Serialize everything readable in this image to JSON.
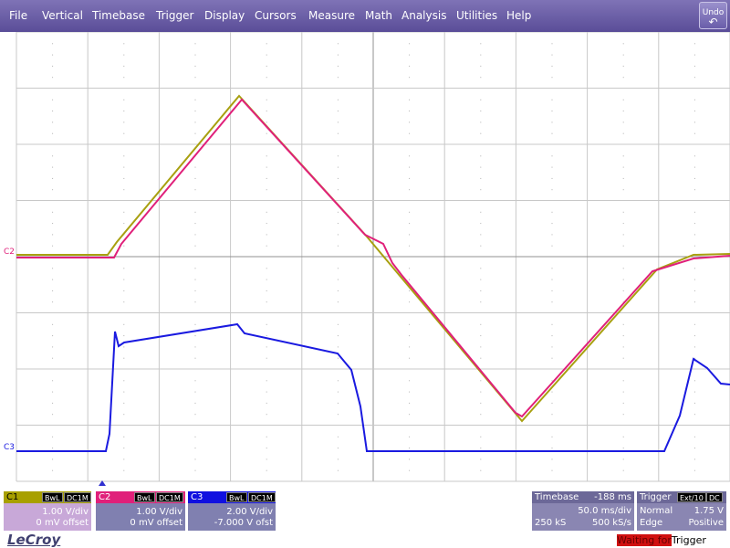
{
  "menu": {
    "items": [
      "File",
      "Vertical",
      "Timebase",
      "Trigger",
      "Display",
      "Cursors",
      "Measure",
      "Math",
      "Analysis",
      "Utilities",
      "Help"
    ],
    "undo_line1": "Undo",
    "undo_line2": "↶"
  },
  "traces": {
    "c1": {
      "color": "#a8a010"
    },
    "c2": {
      "color": "#e0207a"
    },
    "c3": {
      "color": "#1a1ae0"
    }
  },
  "markers": {
    "c2": "C2",
    "c3": "C3"
  },
  "channels": {
    "c1": {
      "name": "C1",
      "bw": "BwL",
      "coupling": "DC1M",
      "scale": "1.00 V/div",
      "offset": "0 mV offset"
    },
    "c2": {
      "name": "C2",
      "bw": "BwL",
      "coupling": "DC1M",
      "scale": "1.00 V/div",
      "offset": "0 mV offset"
    },
    "c3": {
      "name": "C3",
      "bw": "BwL",
      "coupling": "DC1M",
      "scale": "2.00 V/div",
      "offset": "-7.000 V ofst"
    }
  },
  "timebase": {
    "label": "Timebase",
    "delay": "-188 ms",
    "rate": "50.0 ms/div",
    "samples": "250 kS",
    "sample_rate": "500 kS/s"
  },
  "trigger": {
    "label": "Trigger",
    "source": "Ext/10",
    "coupling": "DC",
    "mode": "Normal",
    "level": "1.75 V",
    "type": "Edge",
    "slope": "Positive"
  },
  "brand": "LeCroy",
  "status": {
    "highlight": "Waiting for",
    "rest": "Trigger"
  }
}
